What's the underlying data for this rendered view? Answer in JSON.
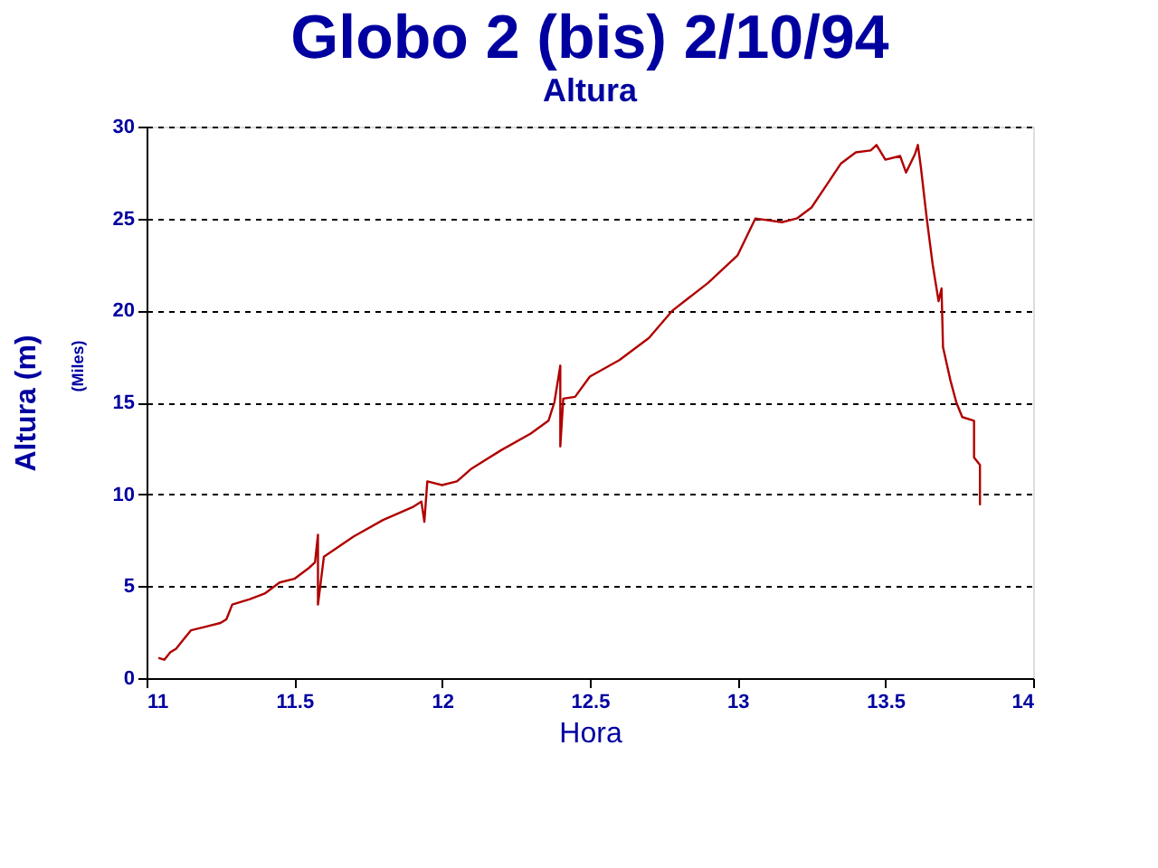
{
  "chart_data": {
    "type": "line",
    "title": "Globo 2 (bis) 2/10/94",
    "subtitle": "Altura",
    "xlabel": "Hora",
    "ylabel": "Altura (m)",
    "annotations": [
      "(Miles)"
    ],
    "xlim": [
      11,
      14
    ],
    "xticks": [
      11,
      11.5,
      12,
      12.5,
      13,
      13.5,
      14
    ],
    "ylim": [
      0,
      30
    ],
    "yticks": [
      0,
      5,
      10,
      15,
      20,
      25,
      30
    ],
    "grid": "y",
    "legend": false,
    "marker": "none",
    "line_style": "solid",
    "series": [
      {
        "color": "#b00000",
        "x": [
          11.04,
          11.06,
          11.08,
          11.1,
          11.12,
          11.15,
          11.2,
          11.25,
          11.27,
          11.29,
          11.35,
          11.4,
          11.45,
          11.5,
          11.55,
          11.57,
          11.58,
          11.58,
          11.6,
          11.7,
          11.8,
          11.9,
          11.93,
          11.94,
          11.95,
          12.0,
          12.05,
          12.1,
          12.2,
          12.3,
          12.36,
          12.38,
          12.4,
          12.4,
          12.41,
          12.45,
          12.5,
          12.6,
          12.7,
          12.78,
          12.9,
          13.0,
          13.06,
          13.15,
          13.2,
          13.25,
          13.3,
          13.35,
          13.4,
          13.45,
          13.47,
          13.5,
          13.55,
          13.57,
          13.6,
          13.61,
          13.62,
          13.64,
          13.66,
          13.68,
          13.69,
          13.695,
          13.72,
          13.74,
          13.76,
          13.8,
          13.8,
          13.82,
          13.82
        ],
        "values": [
          1.1,
          1.0,
          1.4,
          1.6,
          2.0,
          2.6,
          2.8,
          3.0,
          3.2,
          4.0,
          4.3,
          4.6,
          5.2,
          5.4,
          6.0,
          6.3,
          7.8,
          4.0,
          6.6,
          7.7,
          8.6,
          9.3,
          9.6,
          8.5,
          10.7,
          10.5,
          10.7,
          11.4,
          12.4,
          13.3,
          14.0,
          15.0,
          17.0,
          12.6,
          15.2,
          15.3,
          16.4,
          17.3,
          18.5,
          20.0,
          21.5,
          23.0,
          25.0,
          24.8,
          25.0,
          25.6,
          26.8,
          28.0,
          28.6,
          28.7,
          29.0,
          28.2,
          28.4,
          27.5,
          28.5,
          29.0,
          27.8,
          25.0,
          22.5,
          20.5,
          21.2,
          18.0,
          16.2,
          15.0,
          14.2,
          14.0,
          12.0,
          11.6,
          9.4
        ]
      }
    ]
  }
}
